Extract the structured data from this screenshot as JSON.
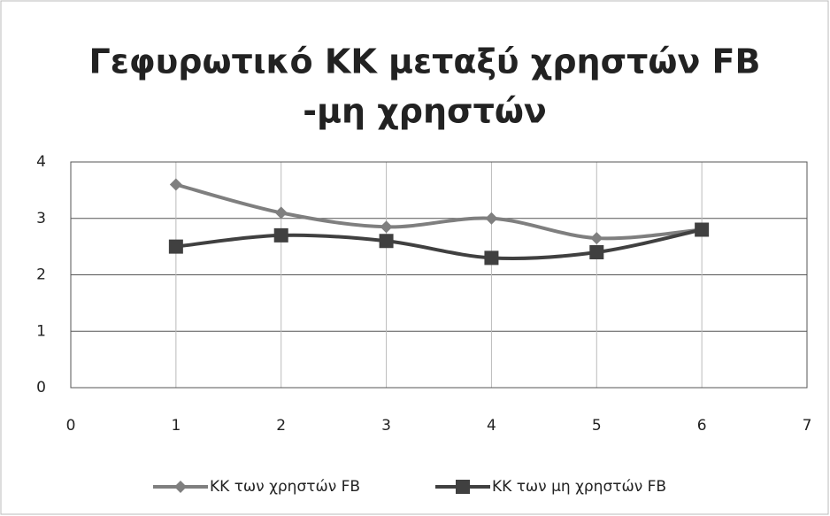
{
  "chart_data": {
    "type": "line",
    "title": [
      "Γεφυρωτικό ΚΚ μεταξύ χρηστών FB",
      "-μη χρηστών"
    ],
    "x": [
      1,
      2,
      3,
      4,
      5,
      6
    ],
    "series": [
      {
        "name": "ΚΚ των χρηστών FB",
        "color": "#7f7f7f",
        "marker": "diamond",
        "values": [
          3.6,
          3.1,
          2.85,
          3.0,
          2.65,
          2.8
        ]
      },
      {
        "name": "ΚΚ των μη χρηστών FB",
        "color": "#404040",
        "marker": "square",
        "values": [
          2.5,
          2.7,
          2.6,
          2.3,
          2.4,
          2.8
        ]
      }
    ],
    "xlim": [
      0,
      7
    ],
    "xticks": [
      0,
      1,
      2,
      3,
      4,
      5,
      6,
      7
    ],
    "ylim": [
      0,
      4
    ],
    "yticks": [
      0,
      1,
      2,
      3,
      4
    ],
    "grid": true,
    "smooth": true,
    "legend": "bottom"
  }
}
